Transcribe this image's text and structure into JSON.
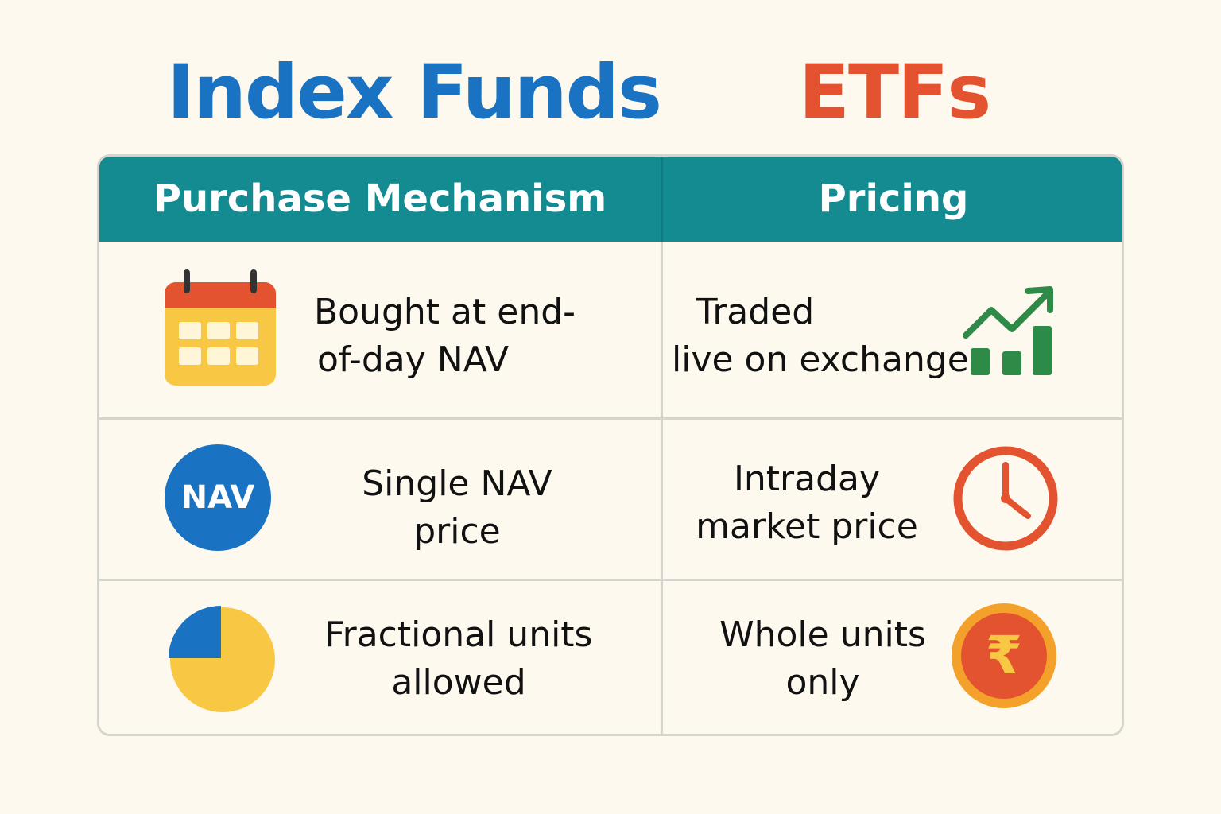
{
  "titles": {
    "left": "Index Funds",
    "right": "ETFs"
  },
  "table": {
    "headers": {
      "left": "Purchase Mechanism",
      "right": "Pricing"
    },
    "rows": [
      {
        "left": {
          "icon": "calendar-icon",
          "line1": "Bought at end-",
          "line2": "of-day NAV"
        },
        "right": {
          "icon": "growth-chart-icon",
          "line1": "Traded",
          "line2": "live on exchange"
        }
      },
      {
        "left": {
          "icon": "nav-badge-icon",
          "badge": "NAV",
          "line1": "Single NAV",
          "line2": "price"
        },
        "right": {
          "icon": "clock-icon",
          "line1": "Intraday",
          "line2": "market price"
        }
      },
      {
        "left": {
          "icon": "pie-chart-icon",
          "line1": "Fractional units",
          "line2": "allowed"
        },
        "right": {
          "icon": "rupee-coin-icon",
          "glyph": "₹",
          "line1": "Whole units",
          "line2": "only"
        }
      }
    ]
  },
  "colors": {
    "blue": "#1a73c2",
    "orange_red": "#e4532f",
    "teal": "#138b91",
    "yellow": "#f8c844",
    "green": "#2e8b47",
    "coin_outer": "#f4a12b"
  }
}
